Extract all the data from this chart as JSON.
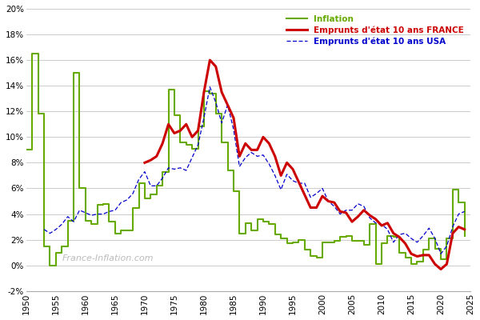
{
  "title": "",
  "background_color": "#ffffff",
  "grid_color": "#cccccc",
  "watermark": "France-Inflation.com",
  "legend": {
    "inflation_label": "Inflation",
    "france_label": "Emprunts d'état 10 ans FRANCE",
    "usa_label": "Emprunts d'état 10 ans USA"
  },
  "colors": {
    "inflation": "#66aa00",
    "france": "#cc0000",
    "usa": "#0000cc"
  },
  "ylim": [
    -2,
    20
  ],
  "yticks": [
    -2,
    0,
    2,
    4,
    6,
    8,
    10,
    12,
    14,
    16,
    18,
    20
  ],
  "xlim": [
    1950,
    2025
  ],
  "xticks": [
    1950,
    1955,
    1960,
    1965,
    1970,
    1975,
    1980,
    1985,
    1990,
    1995,
    2000,
    2005,
    2010,
    2015,
    2020,
    2025
  ],
  "france_oat": {
    "years": [
      1970,
      1971,
      1972,
      1973,
      1974,
      1975,
      1976,
      1977,
      1978,
      1979,
      1980,
      1981,
      1982,
      1983,
      1984,
      1985,
      1986,
      1987,
      1988,
      1989,
      1990,
      1991,
      1992,
      1993,
      1994,
      1995,
      1996,
      1997,
      1998,
      1999,
      2000,
      2001,
      2002,
      2003,
      2004,
      2005,
      2006,
      2007,
      2008,
      2009,
      2010,
      2011,
      2012,
      2013,
      2014,
      2015,
      2016,
      2017,
      2018,
      2019,
      2020,
      2021,
      2022,
      2023,
      2024
    ],
    "values": [
      8.0,
      8.2,
      8.5,
      9.5,
      11.0,
      10.3,
      10.5,
      11.0,
      10.0,
      10.5,
      13.5,
      16.0,
      15.5,
      13.5,
      12.5,
      11.5,
      8.5,
      9.5,
      9.0,
      9.0,
      10.0,
      9.5,
      8.5,
      7.0,
      8.0,
      7.5,
      6.5,
      5.5,
      4.5,
      4.5,
      5.4,
      5.0,
      4.9,
      4.2,
      4.1,
      3.4,
      3.8,
      4.3,
      3.9,
      3.6,
      3.1,
      3.3,
      2.5,
      2.2,
      1.7,
      0.9,
      0.7,
      0.8,
      0.8,
      0.1,
      -0.3,
      0.1,
      2.5,
      3.0,
      2.8
    ]
  },
  "usa_treasury": {
    "years": [
      1953,
      1954,
      1955,
      1956,
      1957,
      1958,
      1959,
      1960,
      1961,
      1962,
      1963,
      1964,
      1965,
      1966,
      1967,
      1968,
      1969,
      1970,
      1971,
      1972,
      1973,
      1974,
      1975,
      1976,
      1977,
      1978,
      1979,
      1980,
      1981,
      1982,
      1983,
      1984,
      1985,
      1986,
      1987,
      1988,
      1989,
      1990,
      1991,
      1992,
      1993,
      1994,
      1995,
      1996,
      1997,
      1998,
      1999,
      2000,
      2001,
      2002,
      2003,
      2004,
      2005,
      2006,
      2007,
      2008,
      2009,
      2010,
      2011,
      2012,
      2013,
      2014,
      2015,
      2016,
      2017,
      2018,
      2019,
      2020,
      2021,
      2022,
      2023,
      2024
    ],
    "values": [
      2.8,
      2.5,
      2.8,
      3.2,
      3.8,
      3.4,
      4.3,
      4.1,
      3.9,
      4.0,
      4.0,
      4.2,
      4.3,
      4.9,
      5.1,
      5.6,
      6.7,
      7.3,
      6.2,
      6.2,
      6.8,
      7.6,
      7.5,
      7.6,
      7.4,
      8.4,
      9.4,
      11.5,
      13.9,
      12.7,
      11.1,
      12.5,
      10.6,
      7.7,
      8.4,
      8.8,
      8.5,
      8.6,
      7.9,
      7.0,
      5.9,
      7.1,
      6.6,
      6.4,
      6.4,
      5.3,
      5.6,
      6.0,
      5.0,
      4.6,
      4.0,
      4.3,
      4.3,
      4.8,
      4.6,
      3.7,
      3.3,
      3.2,
      2.8,
      1.8,
      2.4,
      2.5,
      2.1,
      1.8,
      2.3,
      2.9,
      2.1,
      0.9,
      1.5,
      3.0,
      4.0,
      4.2
    ]
  },
  "inflation_france": {
    "years": [
      1950,
      1951,
      1952,
      1953,
      1954,
      1955,
      1956,
      1957,
      1958,
      1959,
      1960,
      1961,
      1962,
      1963,
      1964,
      1965,
      1966,
      1967,
      1968,
      1969,
      1970,
      1971,
      1972,
      1973,
      1974,
      1975,
      1976,
      1977,
      1978,
      1979,
      1980,
      1981,
      1982,
      1983,
      1984,
      1985,
      1986,
      1987,
      1988,
      1989,
      1990,
      1991,
      1992,
      1993,
      1994,
      1995,
      1996,
      1997,
      1998,
      1999,
      2000,
      2001,
      2002,
      2003,
      2004,
      2005,
      2006,
      2007,
      2008,
      2009,
      2010,
      2011,
      2012,
      2013,
      2014,
      2015,
      2016,
      2017,
      2018,
      2019,
      2020,
      2021,
      2022,
      2023,
      2024
    ],
    "values": [
      9.0,
      16.5,
      11.8,
      1.5,
      0.0,
      1.0,
      1.5,
      3.5,
      15.0,
      6.0,
      3.5,
      3.2,
      4.7,
      4.8,
      3.4,
      2.5,
      2.7,
      2.7,
      4.5,
      6.4,
      5.2,
      5.5,
      6.2,
      7.3,
      13.7,
      11.7,
      9.6,
      9.4,
      9.1,
      10.8,
      13.6,
      13.4,
      11.8,
      9.6,
      7.4,
      5.8,
      2.5,
      3.3,
      2.7,
      3.6,
      3.4,
      3.2,
      2.4,
      2.1,
      1.7,
      1.8,
      2.0,
      1.2,
      0.7,
      0.6,
      1.8,
      1.8,
      1.9,
      2.2,
      2.3,
      1.9,
      1.9,
      1.6,
      3.2,
      0.1,
      1.7,
      2.3,
      2.2,
      1.0,
      0.6,
      0.1,
      0.3,
      1.2,
      2.1,
      1.3,
      0.5,
      2.1,
      5.9,
      4.9,
      2.3
    ]
  }
}
